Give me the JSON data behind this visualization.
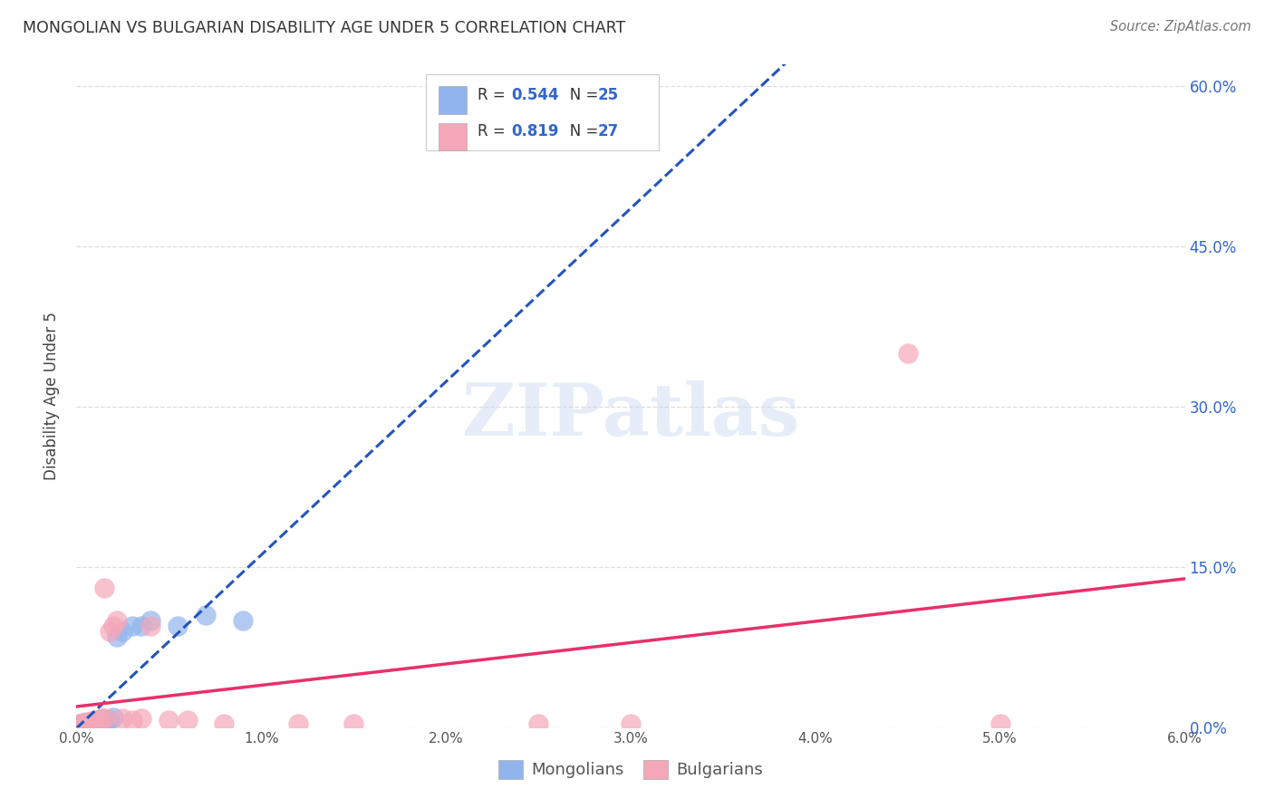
{
  "title": "MONGOLIAN VS BULGARIAN DISABILITY AGE UNDER 5 CORRELATION CHART",
  "source": "Source: ZipAtlas.com",
  "ylabel": "Disability Age Under 5",
  "y_tick_labels": [
    "0.0%",
    "15.0%",
    "30.0%",
    "45.0%",
    "60.0%"
  ],
  "y_tick_values": [
    0.0,
    0.15,
    0.3,
    0.45,
    0.6
  ],
  "x_tick_labels": [
    "0.0%",
    "1.0%",
    "2.0%",
    "3.0%",
    "4.0%",
    "5.0%",
    "6.0%"
  ],
  "x_tick_values": [
    0.0,
    0.01,
    0.02,
    0.03,
    0.04,
    0.05,
    0.06
  ],
  "x_lim": [
    0.0,
    0.06
  ],
  "y_lim": [
    0.0,
    0.62
  ],
  "mongolian_R": "0.544",
  "mongolian_N": "25",
  "bulgarian_R": "0.819",
  "bulgarian_N": "27",
  "mongolian_color": "#92b4ec",
  "bulgarian_color": "#f4a7b9",
  "mongolian_line_color": "#2255bb",
  "bulgarian_line_color": "#e8306a",
  "mongolian_scatter_x": [
    0.0002,
    0.0003,
    0.0004,
    0.0005,
    0.0006,
    0.0007,
    0.0008,
    0.0009,
    0.001,
    0.0011,
    0.0012,
    0.0013,
    0.0014,
    0.0015,
    0.0016,
    0.0018,
    0.002,
    0.0022,
    0.0025,
    0.003,
    0.0035,
    0.004,
    0.0055,
    0.007,
    0.009
  ],
  "mongolian_scatter_y": [
    0.002,
    0.003,
    0.002,
    0.004,
    0.003,
    0.005,
    0.004,
    0.006,
    0.005,
    0.007,
    0.006,
    0.005,
    0.008,
    0.004,
    0.006,
    0.007,
    0.009,
    0.085,
    0.09,
    0.095,
    0.095,
    0.1,
    0.095,
    0.105,
    0.1
  ],
  "bulgarian_scatter_x": [
    0.0002,
    0.0003,
    0.0004,
    0.0005,
    0.0006,
    0.0008,
    0.001,
    0.0012,
    0.0014,
    0.0015,
    0.0016,
    0.0018,
    0.002,
    0.0022,
    0.0025,
    0.003,
    0.0035,
    0.004,
    0.005,
    0.006,
    0.008,
    0.012,
    0.015,
    0.025,
    0.03,
    0.045,
    0.05
  ],
  "bulgarian_scatter_y": [
    0.003,
    0.004,
    0.003,
    0.005,
    0.004,
    0.006,
    0.007,
    0.006,
    0.008,
    0.13,
    0.008,
    0.09,
    0.095,
    0.1,
    0.008,
    0.007,
    0.008,
    0.095,
    0.007,
    0.007,
    0.003,
    0.003,
    0.003,
    0.003,
    0.003,
    0.35,
    0.003
  ],
  "watermark": "ZIPatlas",
  "background_color": "#ffffff",
  "grid_color": "#dddddd"
}
